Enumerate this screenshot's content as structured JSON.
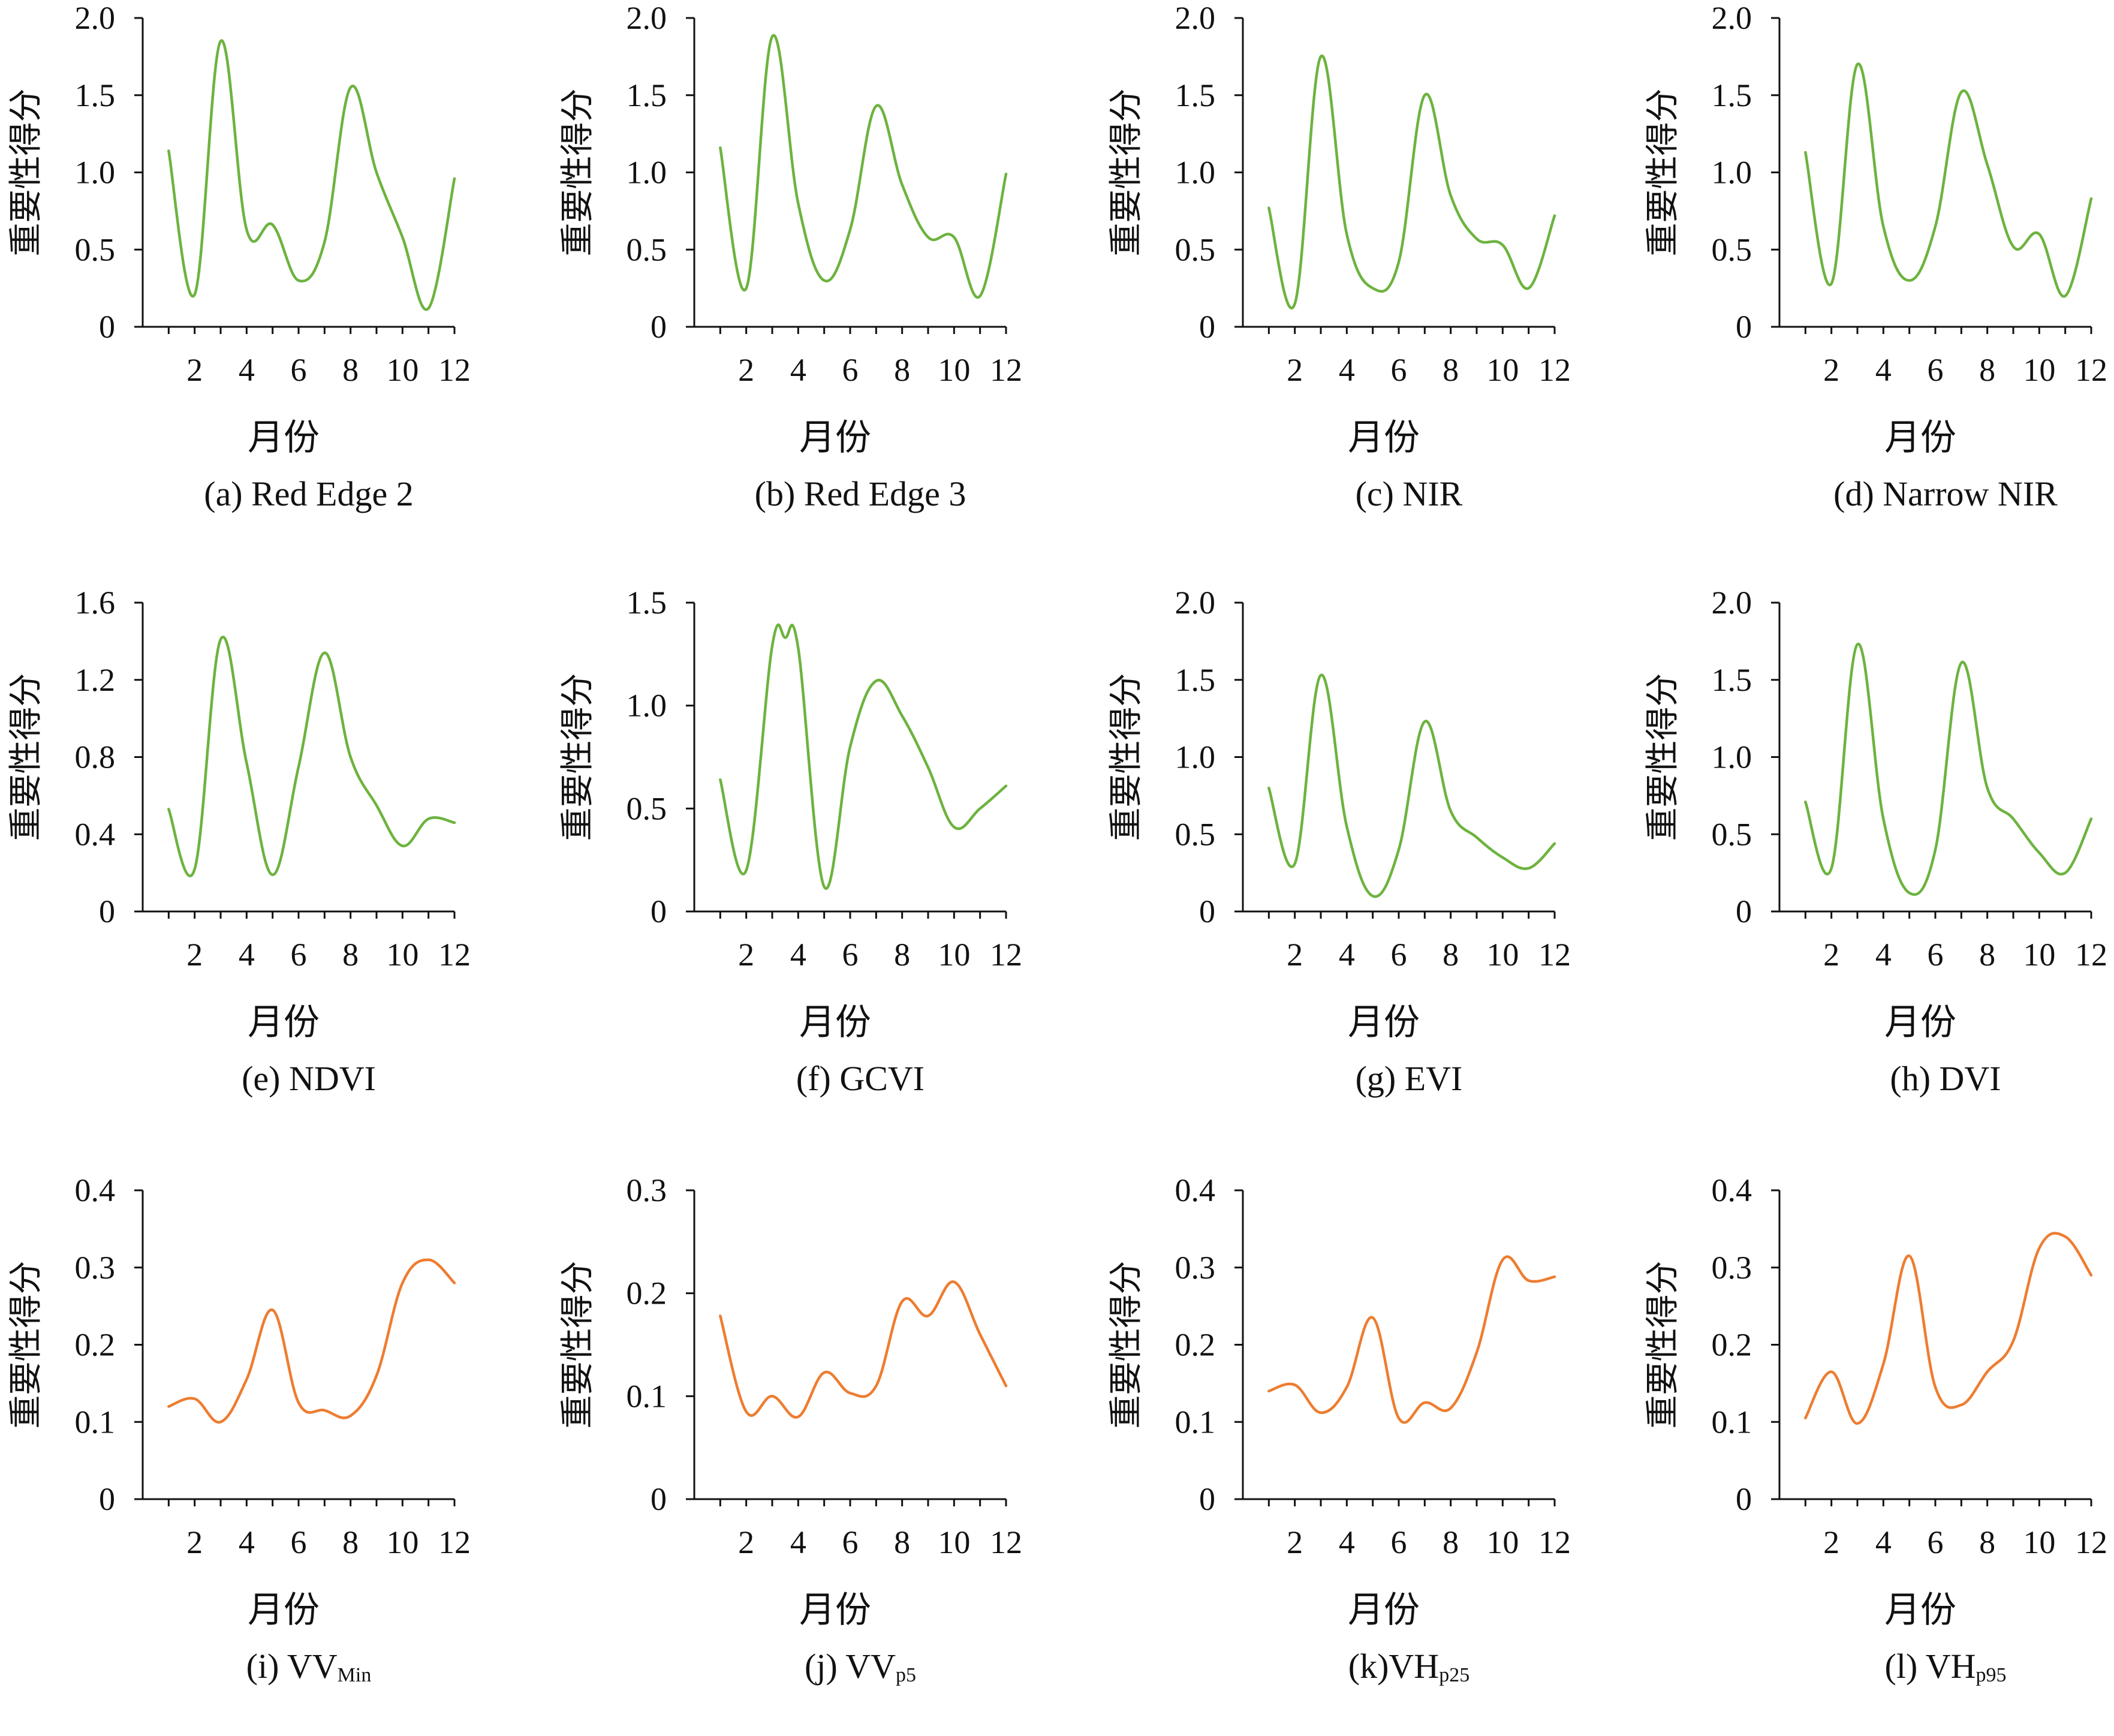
{
  "colors": {
    "vegetation": "#6db33f",
    "sar": "#ed7d31",
    "axis": "#111111"
  },
  "chart_data": [
    {
      "type": "line",
      "caption": "(a) Red Edge 2",
      "caption_sub": "",
      "ylabel": "重要性得分",
      "xlabel": "月份",
      "ylim": [
        0,
        2.0
      ],
      "yticks": [
        "0",
        "0.5",
        "1.0",
        "1.5",
        "2.0"
      ],
      "xticks": [
        2,
        4,
        6,
        8,
        10,
        12
      ],
      "color": "vegetation",
      "x": [
        1,
        2,
        3,
        4,
        5,
        6,
        7,
        8,
        9,
        10,
        11,
        12
      ],
      "values": [
        1.14,
        0.21,
        1.85,
        0.63,
        0.66,
        0.3,
        0.55,
        1.55,
        1.0,
        0.58,
        0.12,
        0.96
      ]
    },
    {
      "type": "line",
      "caption": "(b) Red Edge 3",
      "caption_sub": "",
      "ylabel": "重要性得分",
      "xlabel": "月份",
      "ylim": [
        0,
        2.0
      ],
      "yticks": [
        "0",
        "0.5",
        "1.0",
        "1.5",
        "2.0"
      ],
      "xticks": [
        2,
        4,
        6,
        8,
        10,
        12
      ],
      "color": "vegetation",
      "x": [
        1,
        2,
        3,
        4,
        5,
        6,
        7,
        8,
        9,
        10,
        11,
        12
      ],
      "values": [
        1.16,
        0.25,
        1.88,
        0.8,
        0.3,
        0.63,
        1.43,
        0.92,
        0.58,
        0.58,
        0.2,
        0.99
      ]
    },
    {
      "type": "line",
      "caption": "(c) NIR",
      "caption_sub": "",
      "ylabel": "重要性得分",
      "xlabel": "月份",
      "ylim": [
        0,
        2.0
      ],
      "yticks": [
        "0",
        "0.5",
        "1.0",
        "1.5",
        "2.0"
      ],
      "xticks": [
        2,
        4,
        6,
        8,
        10,
        12
      ],
      "color": "vegetation",
      "x": [
        1,
        2,
        3,
        4,
        5,
        6,
        7,
        8,
        9,
        10,
        11,
        12
      ],
      "values": [
        0.77,
        0.15,
        1.75,
        0.6,
        0.25,
        0.42,
        1.5,
        0.85,
        0.57,
        0.53,
        0.25,
        0.72
      ]
    },
    {
      "type": "line",
      "caption": "(d) Narrow NIR",
      "caption_sub": "",
      "ylabel": "重要性得分",
      "xlabel": "月份",
      "ylim": [
        0,
        2.0
      ],
      "yticks": [
        "0",
        "0.5",
        "1.0",
        "1.5",
        "2.0"
      ],
      "xticks": [
        2,
        4,
        6,
        8,
        10,
        12
      ],
      "color": "vegetation",
      "x": [
        1,
        2,
        3,
        4,
        5,
        6,
        7,
        8,
        9,
        10,
        11,
        12
      ],
      "values": [
        1.13,
        0.28,
        1.7,
        0.65,
        0.3,
        0.65,
        1.52,
        1.05,
        0.52,
        0.6,
        0.2,
        0.83
      ]
    },
    {
      "type": "line",
      "caption": "(e) NDVI",
      "caption_sub": "",
      "ylabel": "重要性得分",
      "xlabel": "月份",
      "ylim": [
        0,
        1.6
      ],
      "yticks": [
        "0",
        "0.4",
        "0.8",
        "1.2",
        "1.6"
      ],
      "xticks": [
        2,
        4,
        6,
        8,
        10,
        12
      ],
      "color": "vegetation",
      "x": [
        1,
        2,
        3,
        4,
        5,
        6,
        7,
        8,
        9,
        10,
        11,
        12
      ],
      "values": [
        0.53,
        0.22,
        1.41,
        0.77,
        0.19,
        0.75,
        1.34,
        0.8,
        0.55,
        0.34,
        0.48,
        0.46
      ]
    },
    {
      "type": "line",
      "caption": "(f) GCVI",
      "caption_sub": "",
      "ylabel": "重要性得分",
      "xlabel": "月份",
      "ylim": [
        0,
        1.5
      ],
      "yticks": [
        "0",
        "0.5",
        "1.0",
        "1.5"
      ],
      "xticks": [
        2,
        4,
        6,
        8,
        10,
        12
      ],
      "color": "vegetation",
      "x": [
        1,
        2,
        3,
        3.5,
        4,
        5,
        6,
        7,
        8,
        9,
        10,
        11,
        12
      ],
      "values": [
        0.64,
        0.2,
        1.29,
        1.33,
        1.28,
        0.12,
        0.8,
        1.12,
        0.95,
        0.7,
        0.41,
        0.5,
        0.61
      ]
    },
    {
      "type": "line",
      "caption": "(g) EVI",
      "caption_sub": "",
      "ylabel": "重要性得分",
      "xlabel": "月份",
      "ylim": [
        0,
        2.0
      ],
      "yticks": [
        "0",
        "0.5",
        "1.0",
        "1.5",
        "2.0"
      ],
      "xticks": [
        2,
        4,
        6,
        8,
        10,
        12
      ],
      "color": "vegetation",
      "x": [
        1,
        2,
        3,
        4,
        5,
        6,
        7,
        8,
        9,
        10,
        11,
        12
      ],
      "values": [
        0.8,
        0.31,
        1.53,
        0.55,
        0.1,
        0.4,
        1.23,
        0.65,
        0.48,
        0.35,
        0.28,
        0.44
      ]
    },
    {
      "type": "line",
      "caption": "(h) DVI",
      "caption_sub": "",
      "ylabel": "重要性得分",
      "xlabel": "月份",
      "ylim": [
        0,
        2.0
      ],
      "yticks": [
        "0",
        "0.5",
        "1.0",
        "1.5",
        "2.0"
      ],
      "xticks": [
        2,
        4,
        6,
        8,
        10,
        12
      ],
      "color": "vegetation",
      "x": [
        1,
        2,
        3,
        4,
        5,
        6,
        7,
        8,
        9,
        10,
        11,
        12
      ],
      "values": [
        0.71,
        0.28,
        1.73,
        0.6,
        0.12,
        0.4,
        1.61,
        0.8,
        0.6,
        0.38,
        0.25,
        0.6
      ]
    },
    {
      "type": "line",
      "caption": "(i) VV",
      "caption_sub": "Min",
      "ylabel": "重要性得分",
      "xlabel": "月份",
      "ylim": [
        0,
        0.4
      ],
      "yticks": [
        "0",
        "0.1",
        "0.2",
        "0.3",
        "0.4"
      ],
      "xticks": [
        2,
        4,
        6,
        8,
        10,
        12
      ],
      "color": "sar",
      "x": [
        1,
        2,
        3,
        4,
        5,
        6,
        7,
        8,
        9,
        10,
        11,
        12
      ],
      "values": [
        0.12,
        0.13,
        0.1,
        0.155,
        0.245,
        0.125,
        0.115,
        0.108,
        0.16,
        0.28,
        0.31,
        0.28
      ]
    },
    {
      "type": "line",
      "caption": "(j) VV",
      "caption_sub": "p5",
      "ylabel": "重要性得分",
      "xlabel": "月份",
      "ylim": [
        0,
        0.3
      ],
      "yticks": [
        "0",
        "0.1",
        "0.2",
        "0.3"
      ],
      "xticks": [
        2,
        4,
        6,
        8,
        10,
        12
      ],
      "color": "sar",
      "x": [
        1,
        2,
        3,
        4,
        5,
        6,
        7,
        8,
        9,
        10,
        11,
        12
      ],
      "values": [
        0.178,
        0.085,
        0.1,
        0.08,
        0.123,
        0.103,
        0.11,
        0.192,
        0.178,
        0.211,
        0.16,
        0.11
      ]
    },
    {
      "type": "line",
      "caption": "(k)VH",
      "caption_sub": "p25",
      "ylabel": "重要性得分",
      "xlabel": "月份",
      "ylim": [
        0,
        0.4
      ],
      "yticks": [
        "0",
        "0.1",
        "0.2",
        "0.3",
        "0.4"
      ],
      "xticks": [
        2,
        4,
        6,
        8,
        10,
        12
      ],
      "color": "sar",
      "x": [
        1,
        2,
        3,
        4,
        5,
        6,
        7,
        8,
        9,
        10,
        11,
        12
      ],
      "values": [
        0.14,
        0.148,
        0.112,
        0.145,
        0.235,
        0.105,
        0.125,
        0.118,
        0.19,
        0.31,
        0.283,
        0.288
      ]
    },
    {
      "type": "line",
      "caption": "(l) VH",
      "caption_sub": "p95",
      "ylabel": "重要性得分",
      "xlabel": "月份",
      "ylim": [
        0,
        0.4
      ],
      "yticks": [
        "0",
        "0.1",
        "0.2",
        "0.3",
        "0.4"
      ],
      "xticks": [
        2,
        4,
        6,
        8,
        10,
        12
      ],
      "color": "sar",
      "x": [
        1,
        2,
        3,
        4,
        5,
        6,
        7,
        8,
        9,
        10,
        11,
        12
      ],
      "values": [
        0.105,
        0.165,
        0.098,
        0.175,
        0.315,
        0.145,
        0.122,
        0.165,
        0.205,
        0.325,
        0.34,
        0.29
      ]
    }
  ]
}
